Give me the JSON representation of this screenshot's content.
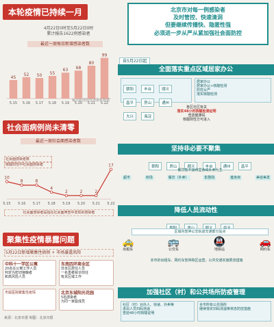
{
  "left": {
    "sec1_title": "本轮疫情已持续一月",
    "sec1_sub1": "4月22日0时至5月22日0时",
    "sec1_sub2": "累计报告1622例感染者",
    "chart1_title": "最近一周每日新增感染者数",
    "chart1_note": "每日新增阳性感染者数据",
    "sec2_title": "社会面病例尚未清零",
    "chart2_title": "最近一周社会面感染者数",
    "chart2_note1": "社会面感染者数",
    "chart2_note2": "核酸阳性中社会面感染者",
    "chart2_bottom": "社会面感染者是指在社会面筛查中发现的感染者",
    "sec3_title": "聚集性疫情暴露问题",
    "sec3_line": "5月22日新增聚集性病例 + 市场暴露风险",
    "sec3_box1_title": "中科十一学区公寓",
    "sec3_box1_lines": [
      "20名在公寓工作人员",
      "判定为密切接触者",
      "和高风险人员"
    ],
    "sec3_box2_title": "东南四环商业区",
    "sec3_box2_lines": [
      "非本区居住人员",
      "一名患者就诊前往",
      "有关区域工作"
    ],
    "sec3_box3_title": "北京东城阳光花园",
    "sec3_box3_lines": [
      "5名感染者",
      "为同一家庭成员"
    ],
    "sec3_box4": "市属医院聚集性疫情",
    "footer": "来源：北京日报 制图：北京日报"
  },
  "chart_data": [
    {
      "type": "bar",
      "categories": [
        "5.15",
        "5.16",
        "5.17",
        "5.18",
        "5.19",
        "5.20",
        "5.21",
        "5.22"
      ],
      "values": [
        45,
        52,
        50,
        55,
        63,
        68,
        80,
        99
      ],
      "value_labels": [
        "45",
        "52",
        "50",
        "55",
        "63",
        "68",
        "80",
        "99"
      ],
      "title": "最近一周每日新增感染者数",
      "ylim": [
        0,
        110
      ]
    },
    {
      "type": "line",
      "categories": [
        "5.15",
        "5.16",
        "5.17",
        "5.18",
        "5.19",
        "5.20",
        "5.21",
        "5.22"
      ],
      "values": [
        10,
        8,
        8,
        4,
        2,
        2,
        2,
        17
      ],
      "value_labels": [
        "10",
        "8",
        "8",
        "4",
        "2",
        "2",
        "2",
        "17"
      ],
      "title": "最近一周社会面感染者数",
      "ylim": [
        0,
        20
      ]
    }
  ],
  "right": {
    "headline": [
      "北京市对每一例感染者",
      "及时管控、快速清洞",
      "但要继续传播快、隐匿性强",
      "必须进一步从严从紧加强社会面防控"
    ],
    "date_tag": "自5月22日起",
    "blk1_title": "全面落实重点区域居家办公",
    "blk1_tags": [
      "朝阳",
      "丰台",
      "顺义",
      "昌平",
      "房山",
      "通州",
      "大兴",
      "海淀"
    ],
    "blk1_items": [
      "居家办公",
      "居家办公+核酸检测",
      "防控从严",
      "落实核酸检测"
    ],
    "blk1_center": [
      "各区社区有关",
      "落实48小时核酸检测证明",
      "查验健康码",
      "核酸阴性方可进入"
    ],
    "blk2_title": "坚持非必要不聚集",
    "blk2_tags": [
      "朝阳",
      "房山",
      "顺义",
      "丰台",
      "通州",
      "昌平"
    ],
    "blk2_line": "餐饮暂不接待堂食和外卖为主",
    "blk2_icons": [
      "超市",
      "商场",
      "餐饮（外卖）",
      "影剧院",
      "健身房",
      "美容美发"
    ],
    "blk3_title": "降低人员流动性",
    "blk3_tags": [
      "朝阳",
      "房山",
      "顺义",
      "海淀"
    ],
    "blk3_line": "区域内暂停公交轨道交通部分站点",
    "blk3_items": [
      "出租车",
      "公交车",
      "地铁站",
      "网约车"
    ],
    "blk3_note": "本市的出租车、网约车暂停跨区运营，公共交通实施限流措施",
    "blk4_title": "加强社区（村）和公共场所防疫管理",
    "blk4_items": [
      "社区（村）对外人、快递、外卖等",
      "全市所有公共场所",
      "进出人员扫码测温",
      "查验48小时核酸证明"
    ],
    "blk4_note": "继续落实扫码测温等常态防控措施"
  },
  "colors": {
    "red": "#c8352c",
    "teal": "#1e8c8c",
    "bar": "#e8a89b",
    "line": "#c8352c"
  }
}
